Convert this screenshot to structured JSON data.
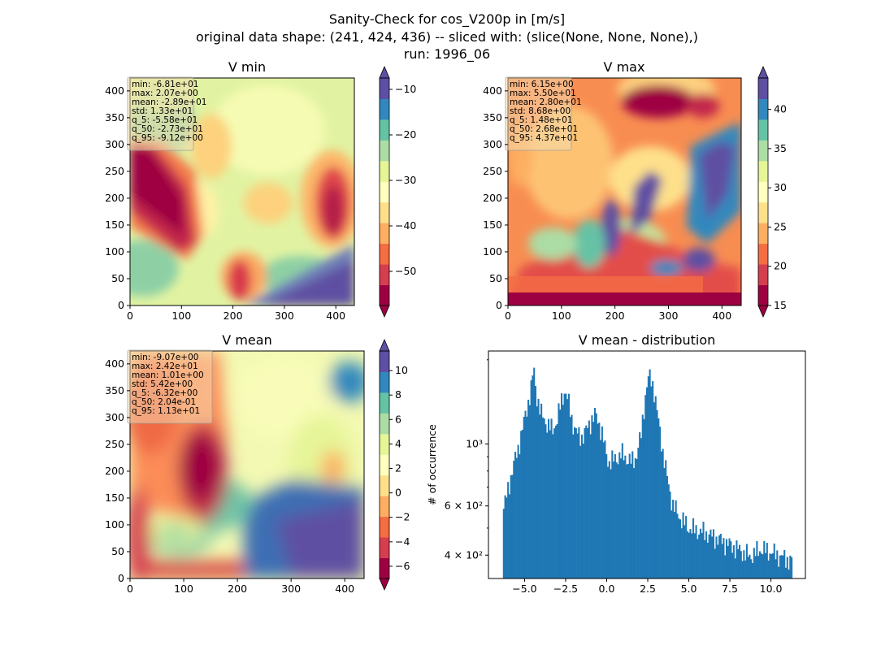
{
  "figure": {
    "title_lines": [
      "Sanity-Check for cos_V200p in [m/s]",
      "original data shape: (241, 424, 436) -- sliced with: (slice(None, None, None),)",
      "run: 1996_06"
    ]
  },
  "colormap": "Spectral",
  "chart_data": [
    {
      "type": "heatmap",
      "title": "V min",
      "xticks": [
        "0",
        "100",
        "200",
        "300",
        "400"
      ],
      "yticks": [
        "0",
        "50",
        "100",
        "150",
        "200",
        "250",
        "300",
        "350",
        "400"
      ],
      "xlim": [
        0,
        436
      ],
      "ylim": [
        0,
        424
      ],
      "colorbar": {
        "range": [
          -57.5,
          -7.5
        ],
        "ticks": [
          "−50",
          "−40",
          "−30",
          "−20",
          "−10"
        ],
        "tick_values": [
          -50,
          -40,
          -30,
          -20,
          -10
        ],
        "extend": "both"
      },
      "stats": [
        "min: -6.81e+01",
        "max: 2.07e+00",
        "mean: -2.89e+01",
        "std: 1.33e+01",
        "q_5: -5.58e+01",
        "q_50: -2.73e+01",
        "q_95: -9.12e+00"
      ]
    },
    {
      "type": "heatmap",
      "title": "V max",
      "xticks": [
        "0",
        "100",
        "200",
        "300",
        "400"
      ],
      "yticks": [
        "0",
        "50",
        "100",
        "150",
        "200",
        "250",
        "300",
        "350",
        "400"
      ],
      "xlim": [
        0,
        436
      ],
      "ylim": [
        0,
        424
      ],
      "colorbar": {
        "range": [
          15,
          44
        ],
        "ticks": [
          "15",
          "20",
          "25",
          "30",
          "35",
          "40"
        ],
        "tick_values": [
          15,
          20,
          25,
          30,
          35,
          40
        ],
        "extend": "both"
      },
      "stats": [
        "min: 6.15e+00",
        "max: 5.50e+01",
        "mean: 2.80e+01",
        "std: 8.68e+00",
        "q_5: 1.48e+01",
        "q_50: 2.68e+01",
        "q_95: 4.37e+01"
      ]
    },
    {
      "type": "heatmap",
      "title": "V mean",
      "xticks": [
        "0",
        "100",
        "200",
        "300",
        "400"
      ],
      "yticks": [
        "0",
        "50",
        "100",
        "150",
        "200",
        "250",
        "300",
        "350",
        "400"
      ],
      "xlim": [
        0,
        436
      ],
      "ylim": [
        0,
        424
      ],
      "colorbar": {
        "range": [
          -7,
          11.6
        ],
        "ticks": [
          "−6",
          "−4",
          "−2",
          "0",
          "2",
          "4",
          "6",
          "8",
          "10"
        ],
        "tick_values": [
          -6,
          -4,
          -2,
          0,
          2,
          4,
          6,
          8,
          10
        ],
        "extend": "both"
      },
      "stats": [
        "min: -9.07e+00",
        "max: 2.42e+01",
        "mean: 1.01e+00",
        "std: 5.42e+00",
        "q_5: -6.32e+00",
        "q_50: 2.04e-01",
        "q_95: 1.13e+01"
      ]
    },
    {
      "type": "bar",
      "title": "V mean - distribution",
      "ylabel": "# of occurrence",
      "yscale": "log",
      "xlim": [
        -7.2,
        12.1
      ],
      "ylim": [
        330,
        2150
      ],
      "color": "#1f77b4",
      "xticks": [
        "−5.0",
        "−2.5",
        "0.0",
        "2.5",
        "5.0",
        "7.5",
        "10.0"
      ],
      "xtick_values": [
        -5,
        -2.5,
        0,
        2.5,
        5,
        7.5,
        10
      ],
      "yticks": [
        "4 × 10²",
        "6 × 10²",
        "10³"
      ],
      "ytick_values": [
        400,
        600,
        1000
      ],
      "bins": {
        "start": -6.32,
        "end": 11.3,
        "count": 200
      },
      "profile": [
        [
          -6.32,
          570
        ],
        [
          -6.1,
          650
        ],
        [
          -5.8,
          780
        ],
        [
          -5.4,
          960
        ],
        [
          -5.1,
          1150
        ],
        [
          -4.85,
          1350
        ],
        [
          -4.6,
          1580
        ],
        [
          -4.45,
          1870
        ],
        [
          -4.3,
          1520
        ],
        [
          -4.0,
          1280
        ],
        [
          -3.6,
          1170
        ],
        [
          -3.3,
          1120
        ],
        [
          -3.0,
          1230
        ],
        [
          -2.75,
          1430
        ],
        [
          -2.55,
          1560
        ],
        [
          -2.35,
          1420
        ],
        [
          -2.1,
          1200
        ],
        [
          -1.8,
          1080
        ],
        [
          -1.5,
          1060
        ],
        [
          -1.2,
          1130
        ],
        [
          -0.9,
          1230
        ],
        [
          -0.7,
          1270
        ],
        [
          -0.5,
          1200
        ],
        [
          -0.3,
          1100
        ],
        [
          -0.1,
          960
        ],
        [
          0.1,
          860
        ],
        [
          0.35,
          870
        ],
        [
          0.6,
          890
        ],
        [
          0.9,
          920
        ],
        [
          1.2,
          890
        ],
        [
          1.5,
          860
        ],
        [
          1.8,
          900
        ],
        [
          2.1,
          1080
        ],
        [
          2.3,
          1400
        ],
        [
          2.5,
          1690
        ],
        [
          2.65,
          1740
        ],
        [
          2.85,
          1600
        ],
        [
          3.1,
          1250
        ],
        [
          3.4,
          950
        ],
        [
          3.7,
          740
        ],
        [
          4.0,
          610
        ],
        [
          4.4,
          550
        ],
        [
          5.0,
          500
        ],
        [
          6.0,
          480
        ],
        [
          7.0,
          450
        ],
        [
          8.0,
          420
        ],
        [
          8.7,
          395
        ],
        [
          9.4,
          420
        ],
        [
          10.0,
          410
        ],
        [
          10.6,
          395
        ],
        [
          11.3,
          380
        ]
      ]
    }
  ]
}
